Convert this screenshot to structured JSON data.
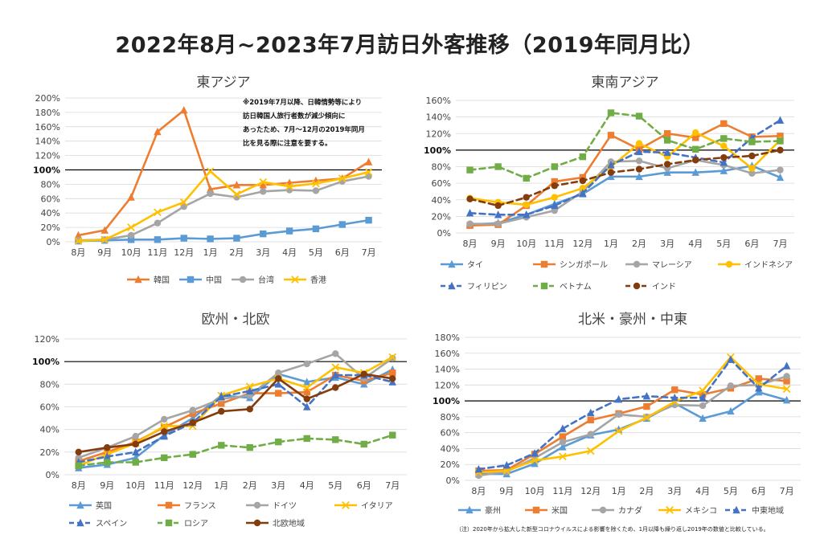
{
  "title": "2022年8月~2023年7月訪日外客推移（2019年同月比）",
  "footnote": "（注）2020年から拡大した新型コロナウイルスによる影響を除くため、1月以降も繰り返し2019年の数値と比較している。",
  "annotation": {
    "lines": [
      "※2019年7月以降、日韓情勢等により",
      "訪日韓国人旅行者数が減少傾向に",
      "あったため、7月～12月の2019年同月",
      "比を見る際に注意を要する。"
    ]
  },
  "chart_data": [
    {
      "id": "east-asia",
      "type": "line",
      "title": "東アジア",
      "categories": [
        "8月",
        "9月",
        "10月",
        "11月",
        "12月",
        "1月",
        "2月",
        "3月",
        "4月",
        "5月",
        "6月",
        "7月"
      ],
      "y_ticks": [
        "0%",
        "20%",
        "40%",
        "60%",
        "80%",
        "100%",
        "120%",
        "140%",
        "160%",
        "180%",
        "200%"
      ],
      "ylim": [
        0,
        200
      ],
      "reference_line": 100,
      "series": [
        {
          "name": "韓国",
          "color": "#ED7D31",
          "marker": "triangle",
          "dash": "solid",
          "values": [
            9,
            16,
            62,
            153,
            183,
            73,
            79,
            79,
            82,
            85,
            88,
            111
          ]
        },
        {
          "name": "中国",
          "color": "#5B9BD5",
          "marker": "square",
          "dash": "solid",
          "values": [
            1,
            2,
            3,
            3,
            5,
            4,
            5,
            11,
            15,
            18,
            24,
            30
          ]
        },
        {
          "name": "台湾",
          "color": "#A5A5A5",
          "marker": "circle",
          "dash": "solid",
          "values": [
            2,
            3,
            9,
            26,
            49,
            67,
            62,
            70,
            72,
            71,
            84,
            91
          ]
        },
        {
          "name": "香港",
          "color": "#FFC000",
          "marker": "x",
          "dash": "solid",
          "values": [
            1,
            3,
            20,
            41,
            55,
            98,
            66,
            83,
            77,
            81,
            88,
            97
          ]
        }
      ]
    },
    {
      "id": "southeast-asia",
      "type": "line",
      "title": "東南アジア",
      "categories": [
        "8月",
        "9月",
        "10月",
        "11月",
        "12月",
        "1月",
        "2月",
        "3月",
        "4月",
        "5月",
        "6月",
        "7月"
      ],
      "y_ticks": [
        "0%",
        "20%",
        "40%",
        "60%",
        "80%",
        "100%",
        "120%",
        "140%",
        "160%"
      ],
      "ylim": [
        0,
        160
      ],
      "reference_line": 100,
      "series": [
        {
          "name": "タイ",
          "color": "#5B9BD5",
          "marker": "triangle",
          "dash": "solid",
          "values": [
            10,
            12,
            22,
            35,
            47,
            68,
            68,
            73,
            73,
            75,
            81,
            67
          ]
        },
        {
          "name": "シンガポール",
          "color": "#ED7D31",
          "marker": "square",
          "dash": "solid",
          "values": [
            9,
            10,
            33,
            62,
            67,
            118,
            101,
            120,
            115,
            132,
            116,
            117
          ]
        },
        {
          "name": "マレーシア",
          "color": "#A5A5A5",
          "marker": "circle",
          "dash": "solid",
          "values": [
            11,
            11,
            19,
            27,
            50,
            86,
            87,
            78,
            88,
            82,
            72,
            76
          ]
        },
        {
          "name": "インドネシア",
          "color": "#FFC000",
          "marker": "circle",
          "dash": "solid",
          "values": [
            42,
            37,
            34,
            43,
            54,
            80,
            108,
            92,
            121,
            105,
            78,
            112
          ]
        },
        {
          "name": "フィリピン",
          "color": "#4472C4",
          "marker": "triangle",
          "dash": "dashed",
          "values": [
            24,
            22,
            22,
            33,
            48,
            82,
            98,
            97,
            91,
            85,
            115,
            136
          ]
        },
        {
          "name": "ベトナム",
          "color": "#70AD47",
          "marker": "square",
          "dash": "dashed",
          "values": [
            76,
            80,
            66,
            80,
            92,
            145,
            141,
            112,
            101,
            114,
            110,
            111
          ]
        },
        {
          "name": "インド",
          "color": "#843C0C",
          "marker": "circle",
          "dash": "dashed",
          "values": [
            41,
            33,
            43,
            57,
            63,
            73,
            77,
            83,
            88,
            91,
            93,
            100
          ]
        }
      ]
    },
    {
      "id": "europe",
      "type": "line",
      "title": "欧州・北欧",
      "categories": [
        "8月",
        "9月",
        "10月",
        "11月",
        "12月",
        "1月",
        "2月",
        "3月",
        "4月",
        "5月",
        "6月",
        "7月"
      ],
      "y_ticks": [
        "0%",
        "20%",
        "40%",
        "60%",
        "80%",
        "100%",
        "120%"
      ],
      "ylim": [
        0,
        120
      ],
      "reference_line": 100,
      "series": [
        {
          "name": "英国",
          "color": "#5B9BD5",
          "marker": "triangle",
          "dash": "solid",
          "values": [
            6,
            9,
            15,
            35,
            50,
            70,
            68,
            89,
            82,
            86,
            80,
            93
          ]
        },
        {
          "name": "フランス",
          "color": "#ED7D31",
          "marker": "square",
          "dash": "solid",
          "values": [
            12,
            20,
            29,
            42,
            54,
            63,
            72,
            72,
            73,
            88,
            83,
            90
          ]
        },
        {
          "name": "ドイツ",
          "color": "#A5A5A5",
          "marker": "circle",
          "dash": "solid",
          "values": [
            15,
            24,
            34,
            49,
            57,
            67,
            70,
            90,
            98,
            107,
            85,
            103
          ]
        },
        {
          "name": "イタリア",
          "color": "#FFC000",
          "marker": "x",
          "dash": "solid",
          "values": [
            8,
            18,
            28,
            43,
            43,
            70,
            78,
            85,
            77,
            95,
            90,
            104
          ]
        },
        {
          "name": "スペイン",
          "color": "#4472C4",
          "marker": "triangle",
          "dash": "dashed",
          "values": [
            11,
            16,
            20,
            34,
            46,
            69,
            74,
            80,
            60,
            88,
            88,
            82
          ]
        },
        {
          "name": "ロシア",
          "color": "#70AD47",
          "marker": "square",
          "dash": "dashed",
          "values": [
            8,
            11,
            11,
            15,
            18,
            26,
            24,
            29,
            32,
            31,
            27,
            35
          ]
        },
        {
          "name": "北欧地域",
          "color": "#843C0C",
          "marker": "circle",
          "dash": "solid",
          "values": [
            20,
            24,
            27,
            38,
            46,
            56,
            58,
            85,
            67,
            77,
            89,
            85
          ]
        }
      ]
    },
    {
      "id": "americas-oceania-me",
      "type": "line",
      "title": "北米・豪州・中東",
      "categories": [
        "8月",
        "9月",
        "10月",
        "11月",
        "12月",
        "1月",
        "2月",
        "3月",
        "4月",
        "5月",
        "6月",
        "7月"
      ],
      "y_ticks": [
        "0%",
        "20%",
        "40%",
        "60%",
        "80%",
        "100%",
        "120%",
        "140%",
        "160%",
        "180%"
      ],
      "ylim": [
        0,
        180
      ],
      "reference_line": 100,
      "series": [
        {
          "name": "豪州",
          "color": "#5B9BD5",
          "marker": "triangle",
          "dash": "solid",
          "values": [
            8,
            8,
            21,
            42,
            57,
            64,
            78,
            97,
            78,
            87,
            111,
            101
          ]
        },
        {
          "name": "米国",
          "color": "#ED7D31",
          "marker": "square",
          "dash": "solid",
          "values": [
            12,
            13,
            33,
            55,
            76,
            84,
            93,
            114,
            108,
            116,
            128,
            125
          ]
        },
        {
          "name": "カナダ",
          "color": "#A5A5A5",
          "marker": "circle",
          "dash": "solid",
          "values": [
            6,
            11,
            28,
            48,
            58,
            83,
            80,
            95,
            94,
            119,
            120,
            131
          ]
        },
        {
          "name": "メキシコ",
          "color": "#FFC000",
          "marker": "x",
          "dash": "solid",
          "values": [
            10,
            12,
            25,
            30,
            37,
            62,
            79,
            99,
            113,
            155,
            121,
            115
          ]
        },
        {
          "name": "中東地域",
          "color": "#4472C4",
          "marker": "triangle",
          "dash": "dashed",
          "values": [
            14,
            19,
            34,
            65,
            85,
            102,
            106,
            104,
            104,
            152,
            116,
            144
          ]
        }
      ]
    }
  ]
}
